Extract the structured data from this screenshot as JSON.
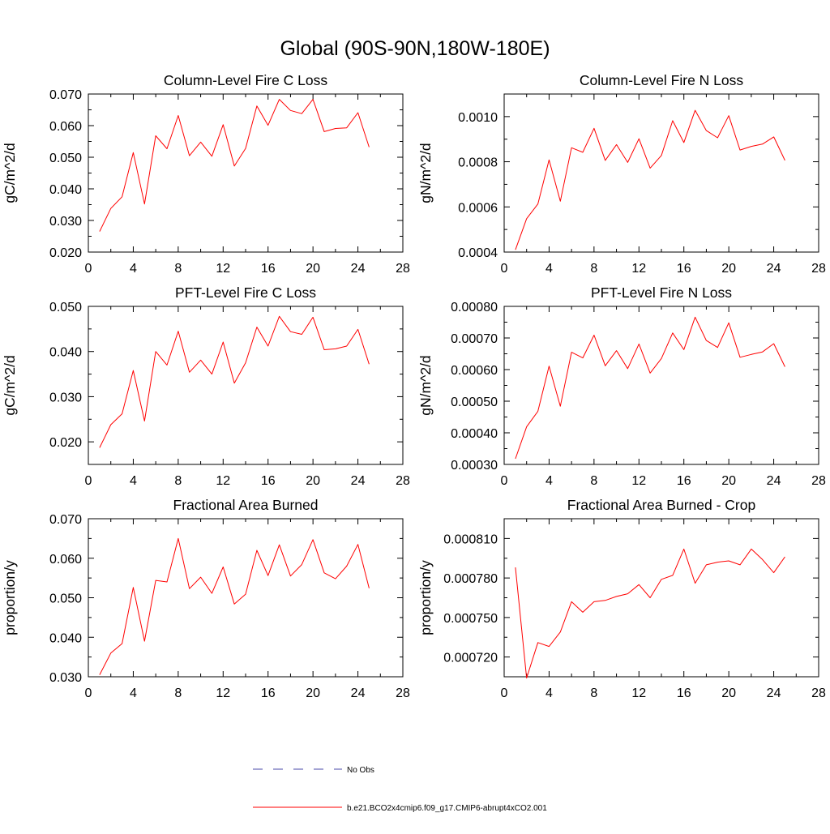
{
  "figure": {
    "title": "Global (90S-90N,180W-180E)"
  },
  "legend": {
    "entries": [
      {
        "label": "No Obs",
        "color": "#4a4aa8",
        "style": "dashed"
      },
      {
        "label": "b.e21.BCO2x4cmip6.f09_g17.CMIP6-abrupt4xCO2.001",
        "color": "#ff0000",
        "style": "solid"
      }
    ]
  },
  "chart_data": [
    {
      "type": "line",
      "title": "Column-Level Fire C Loss",
      "xlabel": "",
      "ylabel": "gC/m^2/d",
      "xlim": [
        0,
        28
      ],
      "ylim": [
        0.02,
        0.07
      ],
      "xticks": [
        "0",
        "4",
        "8",
        "12",
        "16",
        "20",
        "24",
        "28"
      ],
      "yticks": [
        "0.020",
        "0.030",
        "0.040",
        "0.050",
        "0.060",
        "0.070"
      ],
      "series": [
        {
          "name": "b.e21.BCO2x4cmip6.f09_g17.CMIP6-abrupt4xCO2.001",
          "color": "#ff0000",
          "x": [
            1,
            2,
            3,
            4,
            5,
            6,
            7,
            8,
            9,
            10,
            11,
            12,
            13,
            14,
            15,
            16,
            17,
            18,
            19,
            20,
            21,
            22,
            23,
            24,
            25
          ],
          "values": [
            0.0265,
            0.0338,
            0.0375,
            0.0515,
            0.0352,
            0.0568,
            0.0527,
            0.0632,
            0.0505,
            0.0548,
            0.0503,
            0.0603,
            0.0472,
            0.0528,
            0.0662,
            0.0601,
            0.0683,
            0.0648,
            0.0638,
            0.0683,
            0.0581,
            0.0591,
            0.0593,
            0.0641,
            0.0532
          ]
        }
      ]
    },
    {
      "type": "line",
      "title": "Column-Level Fire N Loss",
      "xlabel": "",
      "ylabel": "gN/m^2/d",
      "xlim": [
        0,
        28
      ],
      "ylim": [
        0.0004,
        0.0011
      ],
      "xticks": [
        "0",
        "4",
        "8",
        "12",
        "16",
        "20",
        "24",
        "28"
      ],
      "yticks": [
        "0.0004",
        "0.0006",
        "0.0008",
        "0.0010"
      ],
      "series": [
        {
          "name": "b.e21.BCO2x4cmip6.f09_g17.CMIP6-abrupt4xCO2.001",
          "color": "#ff0000",
          "x": [
            1,
            2,
            3,
            4,
            5,
            6,
            7,
            8,
            9,
            10,
            11,
            12,
            13,
            14,
            15,
            16,
            17,
            18,
            19,
            20,
            21,
            22,
            23,
            24,
            25
          ],
          "values": [
            0.00041,
            0.000548,
            0.000613,
            0.000808,
            0.000625,
            0.000862,
            0.000842,
            0.000948,
            0.000806,
            0.000876,
            0.000797,
            0.000902,
            0.000772,
            0.000828,
            0.000982,
            0.000885,
            0.001028,
            0.000938,
            0.000906,
            0.001004,
            0.000852,
            0.000868,
            0.000878,
            0.00091,
            0.000806
          ]
        }
      ]
    },
    {
      "type": "line",
      "title": "PFT-Level Fire C Loss",
      "xlabel": "",
      "ylabel": "gC/m^2/d",
      "xlim": [
        0,
        28
      ],
      "ylim": [
        0.015,
        0.05
      ],
      "xticks": [
        "0",
        "4",
        "8",
        "12",
        "16",
        "20",
        "24",
        "28"
      ],
      "yticks": [
        "0.020",
        "0.030",
        "0.040",
        "0.050"
      ],
      "series": [
        {
          "name": "b.e21.BCO2x4cmip6.f09_g17.CMIP6-abrupt4xCO2.001",
          "color": "#ff0000",
          "x": [
            1,
            2,
            3,
            4,
            5,
            6,
            7,
            8,
            9,
            10,
            11,
            12,
            13,
            14,
            15,
            16,
            17,
            18,
            19,
            20,
            21,
            22,
            23,
            24,
            25
          ],
          "values": [
            0.0187,
            0.0238,
            0.0262,
            0.0358,
            0.0246,
            0.04,
            0.037,
            0.0445,
            0.0354,
            0.0381,
            0.035,
            0.0421,
            0.033,
            0.0375,
            0.0454,
            0.0412,
            0.0478,
            0.0444,
            0.0438,
            0.0476,
            0.0404,
            0.0406,
            0.0412,
            0.0449,
            0.0372
          ]
        }
      ]
    },
    {
      "type": "line",
      "title": "PFT-Level Fire N Loss",
      "xlabel": "",
      "ylabel": "gN/m^2/d",
      "xlim": [
        0,
        28
      ],
      "ylim": [
        0.0003,
        0.0008
      ],
      "xticks": [
        "0",
        "4",
        "8",
        "12",
        "16",
        "20",
        "24",
        "28"
      ],
      "yticks": [
        "0.00030",
        "0.00040",
        "0.00050",
        "0.00060",
        "0.00070",
        "0.00080"
      ],
      "series": [
        {
          "name": "b.e21.BCO2x4cmip6.f09_g17.CMIP6-abrupt4xCO2.001",
          "color": "#ff0000",
          "x": [
            1,
            2,
            3,
            4,
            5,
            6,
            7,
            8,
            9,
            10,
            11,
            12,
            13,
            14,
            15,
            16,
            17,
            18,
            19,
            20,
            21,
            22,
            23,
            24,
            25
          ],
          "values": [
            0.000318,
            0.000419,
            0.000468,
            0.000611,
            0.000484,
            0.000655,
            0.000637,
            0.000709,
            0.000612,
            0.00066,
            0.000603,
            0.000681,
            0.000589,
            0.000635,
            0.000716,
            0.000663,
            0.000766,
            0.000692,
            0.00067,
            0.000748,
            0.000639,
            0.000648,
            0.000656,
            0.000682,
            0.000609
          ]
        }
      ]
    },
    {
      "type": "line",
      "title": "Fractional Area Burned",
      "xlabel": "",
      "ylabel": "proportion/y",
      "xlim": [
        0,
        28
      ],
      "ylim": [
        0.03,
        0.07
      ],
      "xticks": [
        "0",
        "4",
        "8",
        "12",
        "16",
        "20",
        "24",
        "28"
      ],
      "yticks": [
        "0.030",
        "0.040",
        "0.050",
        "0.060",
        "0.070"
      ],
      "series": [
        {
          "name": "b.e21.BCO2x4cmip6.f09_g17.CMIP6-abrupt4xCO2.001",
          "color": "#ff0000",
          "x": [
            1,
            2,
            3,
            4,
            5,
            6,
            7,
            8,
            9,
            10,
            11,
            12,
            13,
            14,
            15,
            16,
            17,
            18,
            19,
            20,
            21,
            22,
            23,
            24,
            25
          ],
          "values": [
            0.0305,
            0.036,
            0.0384,
            0.0526,
            0.039,
            0.0544,
            0.054,
            0.065,
            0.0523,
            0.0552,
            0.0511,
            0.0578,
            0.0484,
            0.0509,
            0.062,
            0.0556,
            0.0634,
            0.0555,
            0.0584,
            0.0647,
            0.0563,
            0.0548,
            0.058,
            0.0635,
            0.0524
          ]
        }
      ]
    },
    {
      "type": "line",
      "title": "Fractional Area Burned - Crop",
      "xlabel": "",
      "ylabel": "proportion/y",
      "xlim": [
        0,
        28
      ],
      "ylim": [
        0.000705,
        0.000825
      ],
      "xticks": [
        "0",
        "4",
        "8",
        "12",
        "16",
        "20",
        "24",
        "28"
      ],
      "yticks": [
        "0.000720",
        "0.000750",
        "0.000780",
        "0.000810"
      ],
      "series": [
        {
          "name": "b.e21.BCO2x4cmip6.f09_g17.CMIP6-abrupt4xCO2.001",
          "color": "#ff0000",
          "x": [
            1,
            2,
            3,
            4,
            5,
            6,
            7,
            8,
            9,
            10,
            11,
            12,
            13,
            14,
            15,
            16,
            17,
            18,
            19,
            20,
            21,
            22,
            23,
            24,
            25
          ],
          "values": [
            0.000788,
            0.000704,
            0.000731,
            0.000728,
            0.000739,
            0.000762,
            0.000754,
            0.000762,
            0.000763,
            0.000766,
            0.000768,
            0.000775,
            0.000765,
            0.000779,
            0.000782,
            0.000802,
            0.000776,
            0.00079,
            0.000792,
            0.000793,
            0.00079,
            0.000802,
            0.000794,
            0.000784,
            0.000796
          ]
        }
      ]
    }
  ]
}
